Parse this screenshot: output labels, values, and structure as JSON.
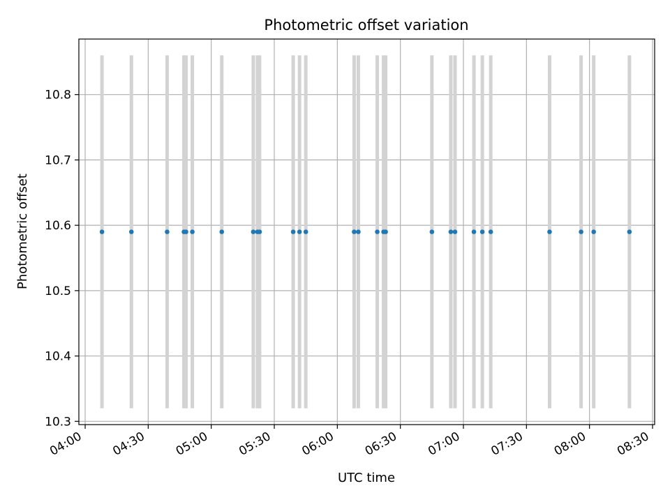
{
  "chart_data": {
    "type": "scatter",
    "title": "Photometric offset variation",
    "xlabel": "UTC time",
    "ylabel": "Photometric offset",
    "xlim": [
      "03:57",
      "08:31"
    ],
    "ylim": [
      10.295,
      10.885
    ],
    "grid": true,
    "x_ticks": [
      "04:00",
      "04:30",
      "05:00",
      "05:30",
      "06:00",
      "06:30",
      "07:00",
      "07:30",
      "08:00",
      "08:30"
    ],
    "y_ticks": [
      "10.3",
      "10.4",
      "10.5",
      "10.6",
      "10.7",
      "10.8"
    ],
    "error_band": {
      "low": 10.32,
      "high": 10.86
    },
    "series": [
      {
        "x": [
          "04:08",
          "04:22",
          "04:39",
          "04:47",
          "04:48",
          "04:51",
          "05:05",
          "05:20",
          "05:22",
          "05:23",
          "05:39",
          "05:42",
          "05:45",
          "06:08",
          "06:10",
          "06:19",
          "06:22",
          "06:23",
          "06:45",
          "06:54",
          "06:56",
          "07:05",
          "07:09",
          "07:13",
          "07:41",
          "07:56",
          "08:02",
          "08:19"
        ],
        "y": [
          10.59,
          10.59,
          10.59,
          10.59,
          10.59,
          10.59,
          10.59,
          10.59,
          10.59,
          10.59,
          10.59,
          10.59,
          10.59,
          10.59,
          10.59,
          10.59,
          10.59,
          10.59,
          10.59,
          10.59,
          10.59,
          10.59,
          10.59,
          10.59,
          10.59,
          10.59,
          10.59,
          10.59
        ]
      }
    ],
    "colors": {
      "points": "#1f77b4",
      "error_bars": "#d3d3d3",
      "grid": "#b0b0b0",
      "axes": "#000000"
    }
  }
}
